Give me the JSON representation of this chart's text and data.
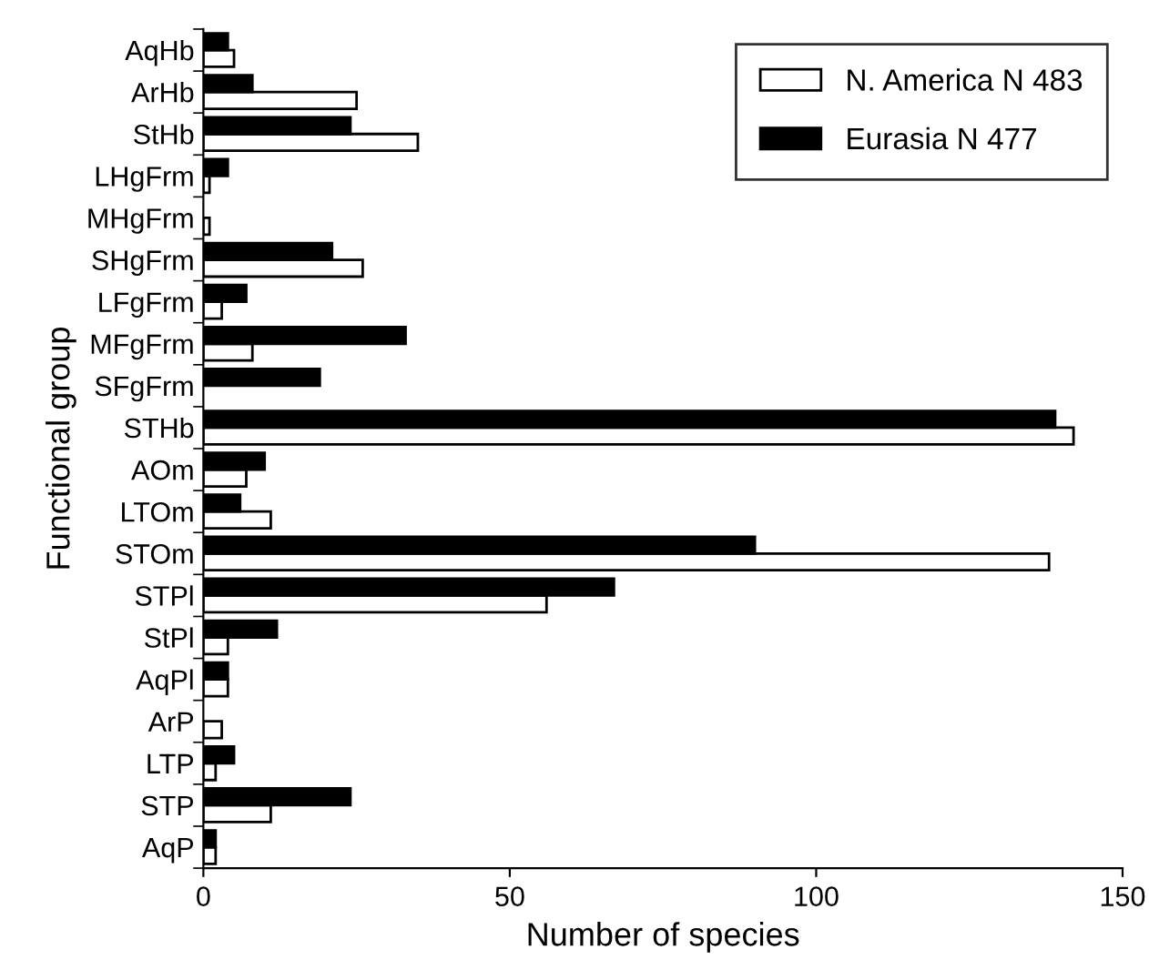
{
  "chart_data": {
    "type": "bar",
    "orientation": "horizontal",
    "xlabel": "Number of species",
    "ylabel": "Functional group",
    "categories": [
      "AqHb",
      "ArHb",
      "StHb",
      "LHgFrm",
      "MHgFrm",
      "SHgFrm",
      "LFgFrm",
      "MFgFrm",
      "SFgFrm",
      "STHb",
      "AOm",
      "LTOm",
      "STOm",
      "STPl",
      "StPl",
      "AqPl",
      "ArP",
      "LTP",
      "STP",
      "AqP"
    ],
    "series": [
      {
        "name": "N. America N 483",
        "color": "#ffffff",
        "values": [
          5,
          25,
          35,
          1,
          1,
          26,
          3,
          8,
          0,
          142,
          7,
          11,
          138,
          56,
          4,
          4,
          3,
          2,
          11,
          2
        ]
      },
      {
        "name": "Eurasia N 477",
        "color": "#000000",
        "values": [
          4,
          8,
          24,
          4,
          0,
          21,
          7,
          33,
          19,
          139,
          10,
          6,
          90,
          67,
          12,
          4,
          0,
          5,
          24,
          2
        ]
      }
    ],
    "xlim": [
      0,
      150
    ],
    "xticks": [
      0,
      50,
      100,
      150
    ],
    "legend": "top right",
    "grid": false
  }
}
